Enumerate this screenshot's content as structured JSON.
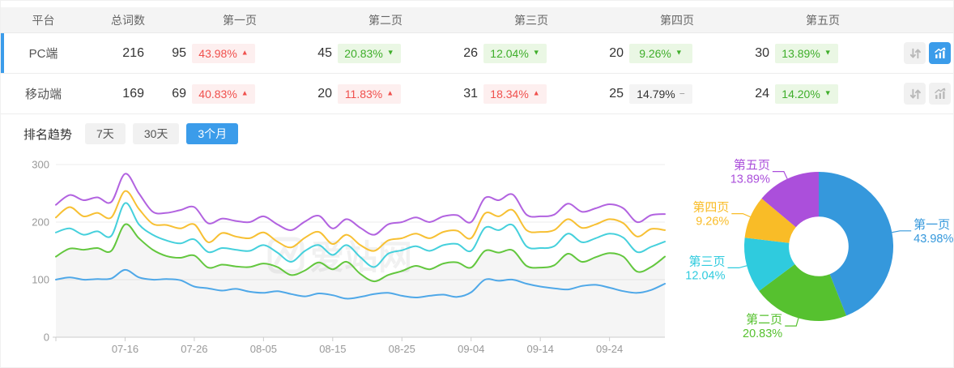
{
  "table": {
    "headers": {
      "platform": "平台",
      "total": "总词数",
      "pages": [
        "第一页",
        "第二页",
        "第三页",
        "第四页",
        "第五页"
      ]
    },
    "rows": [
      {
        "row_class": "trow active",
        "platform": "PC端",
        "total": "216",
        "pages": [
          {
            "count": "95",
            "pct": "43.98%",
            "arrow": "▲",
            "badge_class": "badge up"
          },
          {
            "count": "45",
            "pct": "20.83%",
            "arrow": "▼",
            "badge_class": "badge down"
          },
          {
            "count": "26",
            "pct": "12.04%",
            "arrow": "▼",
            "badge_class": "badge down"
          },
          {
            "count": "20",
            "pct": "9.26%",
            "arrow": "▼",
            "badge_class": "badge down"
          },
          {
            "count": "30",
            "pct": "13.89%",
            "arrow": "▼",
            "badge_class": "badge down"
          }
        ],
        "actions": {
          "sort_class": "iconbtn",
          "chart_class": "iconbtn active"
        }
      },
      {
        "row_class": "trow",
        "platform": "移动端",
        "total": "169",
        "pages": [
          {
            "count": "69",
            "pct": "40.83%",
            "arrow": "▲",
            "badge_class": "badge up"
          },
          {
            "count": "20",
            "pct": "11.83%",
            "arrow": "▲",
            "badge_class": "badge up"
          },
          {
            "count": "31",
            "pct": "18.34%",
            "arrow": "▲",
            "badge_class": "badge up"
          },
          {
            "count": "25",
            "pct": "14.79%",
            "arrow": "−",
            "badge_class": "badge flat"
          },
          {
            "count": "24",
            "pct": "14.20%",
            "arrow": "▼",
            "badge_class": "badge down"
          }
        ],
        "actions": {
          "sort_class": "iconbtn",
          "chart_class": "iconbtn"
        }
      }
    ]
  },
  "trend": {
    "label": "排名趋势",
    "tabs": [
      {
        "label": "7天",
        "class": "tab"
      },
      {
        "label": "30天",
        "class": "tab"
      },
      {
        "label": "3个月",
        "class": "tab active"
      }
    ]
  },
  "watermark": "爱站网",
  "colors": {
    "accent": "#3B9CEA",
    "up_red": "#F0504D",
    "down_green": "#3FAE2A"
  },
  "chart_data": [
    {
      "type": "line",
      "title": "排名趋势（3个月）",
      "x_start": "07-06",
      "x_end": "10-02",
      "x_step_days": 2,
      "x_tick_labels": [
        "07-16",
        "07-26",
        "08-05",
        "08-15",
        "08-25",
        "09-04",
        "09-14",
        "09-24"
      ],
      "x_tick_indices": [
        5,
        10,
        15,
        20,
        25,
        30,
        35,
        40
      ],
      "ylim": [
        0,
        300
      ],
      "yticks": [
        0,
        100,
        200,
        300
      ],
      "grid": true,
      "series": [
        {
          "name": "第一页",
          "color": "#4FA8E8",
          "values": [
            100,
            104,
            100,
            101,
            102,
            117,
            104,
            100,
            101,
            99,
            88,
            85,
            81,
            84,
            79,
            77,
            80,
            75,
            71,
            76,
            73,
            67,
            70,
            75,
            77,
            72,
            69,
            72,
            74,
            70,
            78,
            100,
            98,
            100,
            93,
            88,
            85,
            83,
            89,
            91,
            86,
            80,
            77,
            82,
            93
          ]
        },
        {
          "name": "第二页",
          "color": "#63C73E",
          "area": "#f5f5f5",
          "values": [
            140,
            154,
            152,
            155,
            150,
            196,
            172,
            152,
            141,
            138,
            142,
            121,
            126,
            123,
            122,
            128,
            122,
            108,
            116,
            130,
            118,
            131,
            110,
            97,
            108,
            115,
            124,
            118,
            128,
            130,
            121,
            150,
            147,
            151,
            124,
            121,
            125,
            145,
            131,
            139,
            146,
            140,
            114,
            122,
            140
          ]
        },
        {
          "name": "第三页",
          "color": "#45D0DC",
          "values": [
            182,
            189,
            178,
            184,
            176,
            233,
            196,
            178,
            168,
            163,
            170,
            148,
            155,
            152,
            150,
            160,
            147,
            131,
            150,
            160,
            143,
            160,
            139,
            122,
            145,
            151,
            158,
            150,
            160,
            162,
            150,
            190,
            186,
            195,
            158,
            155,
            158,
            180,
            165,
            172,
            180,
            173,
            148,
            157,
            166
          ]
        },
        {
          "name": "第四页",
          "color": "#F7C033",
          "values": [
            208,
            226,
            210,
            216,
            208,
            254,
            223,
            197,
            195,
            189,
            196,
            165,
            181,
            175,
            172,
            182,
            166,
            156,
            173,
            183,
            162,
            178,
            160,
            150,
            168,
            172,
            180,
            172,
            183,
            185,
            172,
            215,
            210,
            221,
            186,
            183,
            186,
            205,
            190,
            196,
            205,
            198,
            175,
            188,
            186
          ]
        },
        {
          "name": "第五页",
          "color": "#B263E0",
          "values": [
            230,
            247,
            238,
            243,
            235,
            284,
            250,
            218,
            216,
            221,
            226,
            198,
            206,
            202,
            200,
            210,
            196,
            186,
            201,
            211,
            189,
            205,
            190,
            178,
            196,
            200,
            208,
            200,
            210,
            212,
            200,
            242,
            238,
            248,
            213,
            210,
            213,
            232,
            218,
            224,
            231,
            224,
            200,
            212,
            214
          ]
        }
      ]
    },
    {
      "type": "donut",
      "inner_radius_ratio": 0.4,
      "legend_position": "callout-labels",
      "slices": [
        {
          "label": "第一页",
          "value": 43.98,
          "display": "43.98%",
          "color": "#3598DC"
        },
        {
          "label": "第二页",
          "value": 20.83,
          "display": "20.83%",
          "color": "#56C12F"
        },
        {
          "label": "第三页",
          "value": 12.04,
          "display": "12.04%",
          "color": "#2FCBDE"
        },
        {
          "label": "第四页",
          "value": 9.26,
          "display": "9.26%",
          "color": "#F9BC27"
        },
        {
          "label": "第五页",
          "value": 13.89,
          "display": "13.89%",
          "color": "#AB4FDB"
        }
      ]
    }
  ]
}
